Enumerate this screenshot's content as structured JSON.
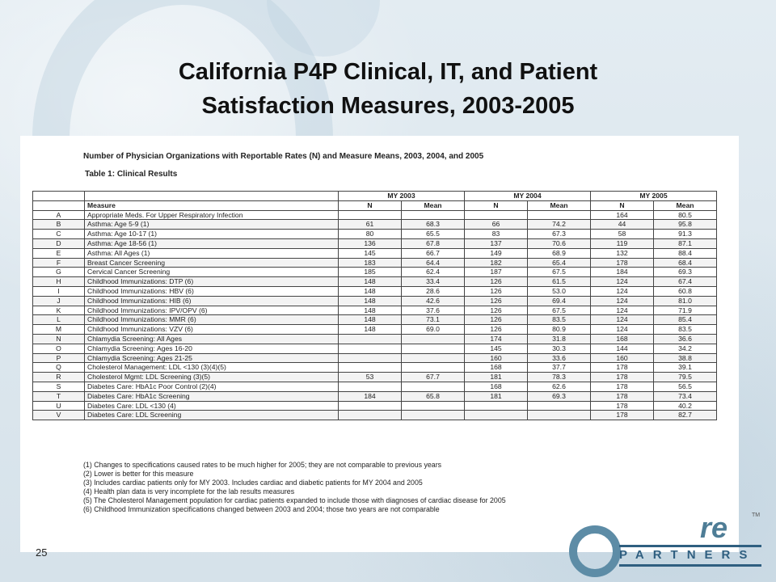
{
  "title": {
    "line1": "California P4P Clinical, IT, and Patient",
    "line2": "Satisfaction Measures, 2003-2005"
  },
  "doc": {
    "heading": "Number of Physician Organizations with Reportable Rates (N) and Measure Means, 2003, 2004, and 2005",
    "table_title": "Table 1: Clinical Results",
    "col_measure": "Measure",
    "years": [
      "MY 2003",
      "MY 2004",
      "MY 2005"
    ],
    "sub_n": "N",
    "sub_mean": "Mean",
    "rows": [
      {
        "code": "A",
        "measure": "Appropriate Meds. For Upper Respiratory Infection",
        "n03": "",
        "m03": "",
        "n04": "",
        "m04": "",
        "n05": "164",
        "m05": "80.5"
      },
      {
        "code": "B",
        "measure": "Asthma: Age 5-9 (1)",
        "n03": "61",
        "m03": "68.3",
        "n04": "66",
        "m04": "74.2",
        "n05": "44",
        "m05": "95.8"
      },
      {
        "code": "C",
        "measure": "Asthma: Age 10-17 (1)",
        "n03": "80",
        "m03": "65.5",
        "n04": "83",
        "m04": "67.3",
        "n05": "58",
        "m05": "91.3"
      },
      {
        "code": "D",
        "measure": "Asthma: Age 18-56 (1)",
        "n03": "136",
        "m03": "67.8",
        "n04": "137",
        "m04": "70.6",
        "n05": "119",
        "m05": "87.1"
      },
      {
        "code": "E",
        "measure": "Asthma: All Ages (1)",
        "n03": "145",
        "m03": "66.7",
        "n04": "149",
        "m04": "68.9",
        "n05": "132",
        "m05": "88.4"
      },
      {
        "code": "F",
        "measure": "Breast Cancer Screening",
        "n03": "183",
        "m03": "64.4",
        "n04": "182",
        "m04": "65.4",
        "n05": "178",
        "m05": "68.4"
      },
      {
        "code": "G",
        "measure": "Cervical Cancer Screening",
        "n03": "185",
        "m03": "62.4",
        "n04": "187",
        "m04": "67.5",
        "n05": "184",
        "m05": "69.3"
      },
      {
        "code": "H",
        "measure": "Childhood Immunizations: DTP (6)",
        "n03": "148",
        "m03": "33.4",
        "n04": "126",
        "m04": "61.5",
        "n05": "124",
        "m05": "67.4"
      },
      {
        "code": "I",
        "measure": "Childhood Immunizations: HBV (6)",
        "n03": "148",
        "m03": "28.6",
        "n04": "126",
        "m04": "53.0",
        "n05": "124",
        "m05": "60.8"
      },
      {
        "code": "J",
        "measure": "Childhood Immunizations: HIB (6)",
        "n03": "148",
        "m03": "42.6",
        "n04": "126",
        "m04": "69.4",
        "n05": "124",
        "m05": "81.0"
      },
      {
        "code": "K",
        "measure": "Childhood Immunizations: IPV/OPV (6)",
        "n03": "148",
        "m03": "37.6",
        "n04": "126",
        "m04": "67.5",
        "n05": "124",
        "m05": "71.9"
      },
      {
        "code": "L",
        "measure": "Childhood Immunizations: MMR (6)",
        "n03": "148",
        "m03": "73.1",
        "n04": "126",
        "m04": "83.5",
        "n05": "124",
        "m05": "85.4"
      },
      {
        "code": "M",
        "measure": "Childhood Immunizations: VZV (6)",
        "n03": "148",
        "m03": "69.0",
        "n04": "126",
        "m04": "80.9",
        "n05": "124",
        "m05": "83.5"
      },
      {
        "code": "N",
        "measure": "Chlamydia Screening: All Ages",
        "n03": "",
        "m03": "",
        "n04": "174",
        "m04": "31.8",
        "n05": "168",
        "m05": "36.6"
      },
      {
        "code": "O",
        "measure": "Chlamydia Screening: Ages 16-20",
        "n03": "",
        "m03": "",
        "n04": "145",
        "m04": "30.3",
        "n05": "144",
        "m05": "34.2"
      },
      {
        "code": "P",
        "measure": "Chlamydia Screening: Ages 21-25",
        "n03": "",
        "m03": "",
        "n04": "160",
        "m04": "33.6",
        "n05": "160",
        "m05": "38.8"
      },
      {
        "code": "Q",
        "measure": "Cholesterol Management: LDL <130 (3)(4)(5)",
        "n03": "",
        "m03": "",
        "n04": "168",
        "m04": "37.7",
        "n05": "178",
        "m05": "39.1"
      },
      {
        "code": "R",
        "measure": "Cholesterol Mgmt: LDL Screening (3)(5)",
        "n03": "53",
        "m03": "67.7",
        "n04": "181",
        "m04": "78.3",
        "n05": "178",
        "m05": "79.5"
      },
      {
        "code": "S",
        "measure": "Diabetes Care: HbA1c Poor Control (2)(4)",
        "n03": "",
        "m03": "",
        "n04": "168",
        "m04": "62.6",
        "n05": "178",
        "m05": "56.5"
      },
      {
        "code": "T",
        "measure": "Diabetes Care: HbA1c Screening",
        "n03": "184",
        "m03": "65.8",
        "n04": "181",
        "m04": "69.3",
        "n05": "178",
        "m05": "73.4"
      },
      {
        "code": "U",
        "measure": "Diabetes Care: LDL <130 (4)",
        "n03": "",
        "m03": "",
        "n04": "",
        "m04": "",
        "n05": "178",
        "m05": "40.2"
      },
      {
        "code": "V",
        "measure": "Diabetes Care: LDL Screening",
        "n03": "",
        "m03": "",
        "n04": "",
        "m04": "",
        "n05": "178",
        "m05": "82.7"
      }
    ],
    "notes": [
      "(1) Changes to specifications caused rates to be much higher for 2005; they are not comparable to previous years",
      "(2) Lower is better for this measure",
      "(3) Includes cardiac patients only for MY 2003.  Includes cardiac and diabetic patients for MY 2004 and 2005",
      "(4) Health plan data is very incomplete for the lab results measures",
      "(5) The Cholesterol Management population for cardiac patients expanded to include those with diagnoses of cardiac disease for 2005",
      "(6) Childhood Immunization specifications changed between 2003 and 2004; those two years are not comparable"
    ]
  },
  "slide_number": "25",
  "logo": {
    "text_re": "re",
    "text_partners": "PARTNERS",
    "tm": "TM"
  }
}
